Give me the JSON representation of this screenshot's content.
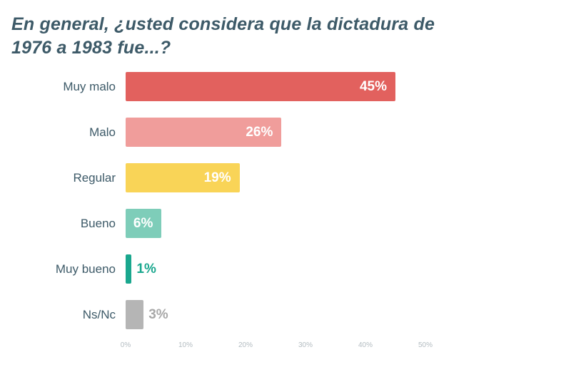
{
  "colors": {
    "title": "#3d5a68",
    "category_label": "#3d5a68",
    "axis_tick": "#b3bcc1"
  },
  "chart_data": {
    "type": "bar",
    "orientation": "horizontal",
    "title": "En general, ¿usted considera que la dictadura de 1976 a 1983 fue...?",
    "categories": [
      "Muy malo",
      "Malo",
      "Regular",
      "Bueno",
      "Muy bueno",
      "Ns/Nc"
    ],
    "values": [
      45,
      26,
      19,
      6,
      1,
      3
    ],
    "value_labels": [
      "45%",
      "26%",
      "19%",
      "6%",
      "1%",
      "3%"
    ],
    "bar_colors": [
      "#e2615e",
      "#f09d9b",
      "#f9d457",
      "#7ecdb9",
      "#1aa78e",
      "#b5b5b5"
    ],
    "value_label_inside": [
      true,
      true,
      true,
      true,
      false,
      false
    ],
    "value_label_colors": [
      "#ffffff",
      "#ffffff",
      "#ffffff",
      "#ffffff",
      "#1aa78e",
      "#a8a8a8"
    ],
    "x_ticks": [
      "0%",
      "10%",
      "20%",
      "30%",
      "40%",
      "50%"
    ],
    "xlim": [
      0,
      50
    ],
    "grid": false,
    "legend": false
  }
}
